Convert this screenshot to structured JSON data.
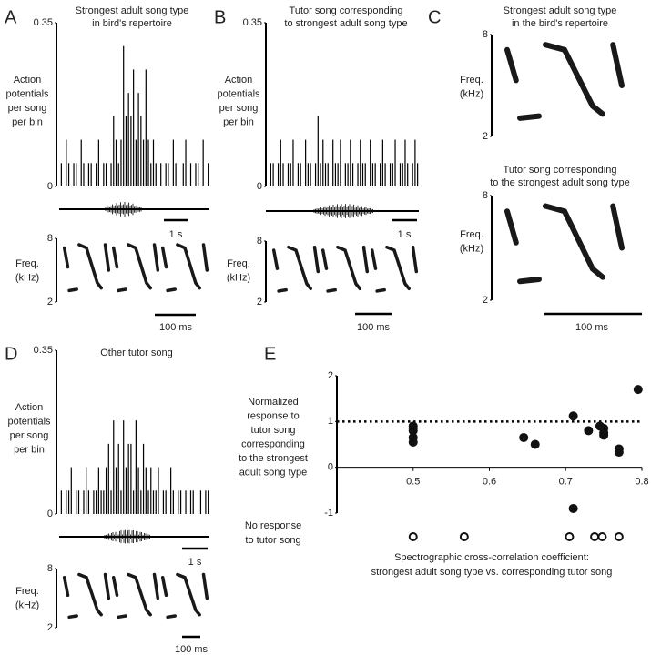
{
  "chart_data": [
    {
      "type": "bar",
      "panel": "A",
      "title": [
        "Strongest adult song type",
        "in bird's repertoire"
      ],
      "ylabel": [
        "Action",
        "potentials",
        "per song",
        "per bin"
      ],
      "ylim": [
        0,
        0.35
      ],
      "yticks": [
        0,
        0.35
      ],
      "scale_bar": "1 s",
      "values": [
        0.05,
        0,
        0.1,
        0.05,
        0,
        0.05,
        0.05,
        0,
        0.1,
        0.05,
        0,
        0.05,
        0.05,
        0,
        0.05,
        0.1,
        0,
        0.05,
        0.05,
        0,
        0.05,
        0.15,
        0.1,
        0.05,
        0.1,
        0.3,
        0.15,
        0.2,
        0.15,
        0.25,
        0.1,
        0.2,
        0.15,
        0.1,
        0.25,
        0.1,
        0.05,
        0.1,
        0.05,
        0,
        0.05,
        0,
        0.05,
        0.05,
        0,
        0.1,
        0.05,
        0,
        0,
        0.05,
        0.1,
        0,
        0.05,
        0,
        0.05,
        0.05,
        0,
        0.1,
        0,
        0.05
      ]
    },
    {
      "type": "spectrogram",
      "ylabel": [
        "Freq.",
        "(kHz)"
      ],
      "ylim": [
        2,
        8
      ],
      "yticks": [
        2,
        8
      ],
      "scale_bar": "100 ms"
    },
    {
      "type": "bar",
      "panel": "B",
      "title": [
        "Tutor song corresponding",
        "to strongest adult song type"
      ],
      "ylabel": [
        "Action",
        "potentials",
        "per song",
        "per bin"
      ],
      "ylim": [
        0,
        0.35
      ],
      "yticks": [
        0,
        0.35
      ],
      "scale_bar": "1 s",
      "values": [
        0.05,
        0.05,
        0,
        0.05,
        0.1,
        0.05,
        0,
        0.05,
        0.05,
        0.1,
        0,
        0.05,
        0.05,
        0,
        0.1,
        0.05,
        0.05,
        0,
        0.05,
        0.15,
        0.05,
        0.1,
        0.05,
        0.05,
        0,
        0.1,
        0.05,
        0.05,
        0.1,
        0,
        0.05,
        0.05,
        0.1,
        0.05,
        0,
        0.05,
        0.1,
        0.05,
        0.05,
        0,
        0.1,
        0.05,
        0.05,
        0,
        0.05,
        0.1,
        0.05,
        0,
        0.05,
        0.05,
        0.1,
        0,
        0.05,
        0.05,
        0.1,
        0.05,
        0,
        0.05,
        0.1,
        0.05
      ]
    },
    {
      "type": "spectrogram",
      "ylabel": [
        "Freq.",
        "(kHz)"
      ],
      "ylim": [
        2,
        8
      ],
      "yticks": [
        2,
        8
      ],
      "scale_bar": "100 ms"
    },
    {
      "type": "spectrogram",
      "panel": "C",
      "title": [
        "Strongest adult song type",
        "in the bird's repertoire"
      ],
      "ylabel": [
        "Freq.",
        "(kHz)"
      ],
      "ylim": [
        2,
        8
      ],
      "yticks": [
        2,
        8
      ]
    },
    {
      "type": "spectrogram",
      "title": [
        "Tutor song corresponding",
        "to the strongest adult song type"
      ],
      "ylabel": [
        "Freq.",
        "(kHz)"
      ],
      "ylim": [
        2,
        8
      ],
      "yticks": [
        2,
        8
      ],
      "scale_bar": "100 ms"
    },
    {
      "type": "bar",
      "panel": "D",
      "title": [
        "Other tutor song"
      ],
      "ylabel": [
        "Action",
        "potentials",
        "per song",
        "per bin"
      ],
      "ylim": [
        0,
        0.35
      ],
      "yticks": [
        0,
        0.35
      ],
      "scale_bar": "1 s",
      "values": [
        0.05,
        0,
        0.05,
        0.05,
        0.1,
        0,
        0.05,
        0.05,
        0,
        0.05,
        0.1,
        0.05,
        0,
        0.05,
        0.05,
        0.1,
        0.05,
        0.05,
        0.1,
        0.15,
        0.05,
        0.2,
        0.1,
        0.15,
        0.05,
        0.2,
        0.1,
        0.15,
        0.15,
        0.05,
        0.2,
        0.1,
        0.05,
        0.15,
        0.1,
        0.05,
        0.1,
        0.05,
        0.05,
        0.1,
        0,
        0.05,
        0.05,
        0,
        0.1,
        0.05,
        0,
        0.05,
        0.05,
        0,
        0.05,
        0,
        0.05,
        0.05,
        0,
        0,
        0.05,
        0,
        0.05,
        0.05
      ]
    },
    {
      "type": "spectrogram",
      "ylabel": [
        "Freq.",
        "(kHz)"
      ],
      "ylim": [
        2,
        8
      ],
      "yticks": [
        2,
        8
      ],
      "scale_bar": "100 ms"
    },
    {
      "type": "scatter",
      "panel": "E",
      "ylabel": [
        "Normalized",
        "response to",
        "tutor song",
        "corresponding",
        "to the strongest",
        "adult song type"
      ],
      "xlabel": [
        "Spectrographic cross-correlation coefficient:",
        "strongest adult song type vs. corresponding tutor song"
      ],
      "no_response_label": [
        "No response",
        "to tutor song"
      ],
      "xlim": [
        0.4,
        0.8
      ],
      "xticks": [
        0.5,
        0.6,
        0.7,
        0.8
      ],
      "ylim": [
        -1,
        2
      ],
      "yticks": [
        -1,
        0,
        1,
        2
      ],
      "reference_line": 1,
      "series": [
        {
          "x": [
            0.5,
            0.5,
            0.5,
            0.5,
            0.5,
            0.645,
            0.66,
            0.71,
            0.71,
            0.73,
            0.745,
            0.75,
            0.75,
            0.75,
            0.77,
            0.77,
            0.795
          ],
          "values": [
            0.9,
            0.85,
            0.8,
            0.65,
            0.55,
            0.65,
            0.5,
            1.12,
            -0.9,
            0.8,
            0.9,
            0.85,
            0.75,
            0.7,
            0.4,
            0.33,
            1.7
          ]
        },
        {
          "x": [
            0.5,
            0.567,
            0.705,
            0.738,
            0.748,
            0.77
          ]
        }
      ]
    }
  ]
}
